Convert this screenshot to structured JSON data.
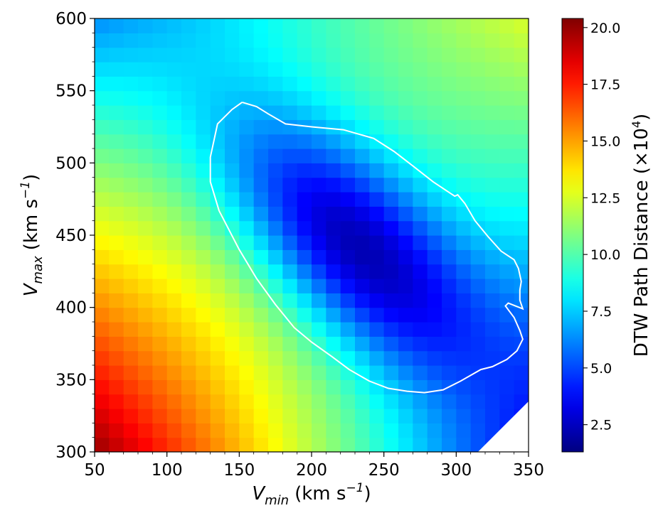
{
  "chart_data": {
    "type": "heatmap",
    "title": "",
    "xlabel": {
      "main": "V",
      "sub": "min",
      "unit": "(km s",
      "exp": "−1",
      "close": ")"
    },
    "ylabel": {
      "main": "V",
      "sub": "max",
      "unit": "(km s",
      "exp": "−1",
      "close": ")"
    },
    "xlim": [
      50,
      350
    ],
    "ylim": [
      300,
      600
    ],
    "x_ticks": [
      "50",
      "100",
      "150",
      "200",
      "250",
      "300",
      "350"
    ],
    "y_ticks": [
      "300",
      "350",
      "400",
      "450",
      "500",
      "550",
      "600"
    ],
    "grid": false,
    "grid_cells": {
      "nx": 30,
      "ny": 30
    },
    "colormap": "jet",
    "colorbar": {
      "label": "DTW Path Distance (×10",
      "label_exp": "4",
      "label_close": ")",
      "range": [
        1.3,
        20.4
      ],
      "tick_values": [
        2.5,
        5.0,
        7.5,
        10.0,
        12.5,
        15.0,
        17.5,
        20.0
      ],
      "tick_labels": [
        "2.5",
        "5.0",
        "7.5",
        "10.0",
        "12.5",
        "15.0",
        "17.5",
        "20.0"
      ]
    },
    "field_model": {
      "minimum_at": [
        235,
        440
      ],
      "minimum_value": 1.6,
      "corner_values": {
        "bottom_left": 20.4,
        "top_left": 6.5,
        "top_right": 12.8,
        "bottom_right": 3.8
      }
    },
    "missing_region": [
      [
        315,
        300
      ],
      [
        350,
        300
      ],
      [
        350,
        335
      ],
      [
        315,
        300
      ]
    ],
    "contour": {
      "color": "#ffffff",
      "points": [
        [
          152,
          542
        ],
        [
          162,
          539
        ],
        [
          170,
          534
        ],
        [
          182,
          527
        ],
        [
          200,
          525
        ],
        [
          222,
          523
        ],
        [
          243,
          517
        ],
        [
          257,
          508
        ],
        [
          270,
          498
        ],
        [
          284,
          487
        ],
        [
          299,
          477
        ],
        [
          301,
          478
        ],
        [
          306,
          472
        ],
        [
          313,
          460
        ],
        [
          322,
          449
        ],
        [
          331,
          439
        ],
        [
          340,
          433
        ],
        [
          343,
          427
        ],
        [
          345,
          418
        ],
        [
          344,
          412
        ],
        [
          344,
          405
        ],
        [
          346,
          399
        ],
        [
          336,
          403
        ],
        [
          334,
          401
        ],
        [
          340,
          393
        ],
        [
          344,
          384
        ],
        [
          346,
          378
        ],
        [
          342,
          370
        ],
        [
          335,
          364
        ],
        [
          325,
          359
        ],
        [
          317,
          357
        ],
        [
          303,
          349
        ],
        [
          291,
          343
        ],
        [
          278,
          341
        ],
        [
          266,
          342
        ],
        [
          253,
          344
        ],
        [
          240,
          349
        ],
        [
          226,
          357
        ],
        [
          214,
          366
        ],
        [
          200,
          376
        ],
        [
          188,
          386
        ],
        [
          175,
          402
        ],
        [
          162,
          420
        ],
        [
          150,
          440
        ],
        [
          136,
          467
        ],
        [
          130,
          487
        ],
        [
          130,
          504
        ],
        [
          135,
          527
        ],
        [
          145,
          537
        ],
        [
          152,
          542
        ]
      ]
    }
  }
}
